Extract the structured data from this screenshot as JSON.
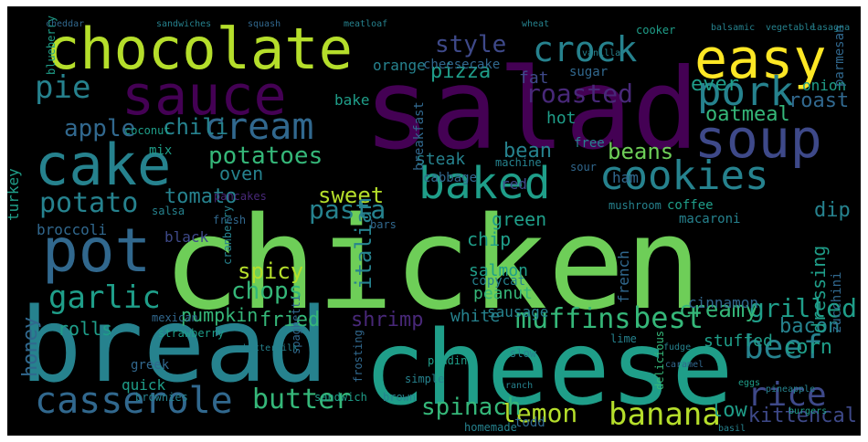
{
  "palette": {
    "background": "#000000",
    "viridis": [
      "#440154",
      "#482878",
      "#3e4989",
      "#31688e",
      "#26828e",
      "#1f9e89",
      "#35b779",
      "#6ece58",
      "#b5de2b",
      "#fde725"
    ]
  },
  "words": [
    {
      "text": "chicken",
      "weight": 1.0
    },
    {
      "text": "salad",
      "weight": 0.93
    },
    {
      "text": "bread",
      "weight": 0.9
    },
    {
      "text": "cheese",
      "weight": 0.88
    },
    {
      "text": "chocolate",
      "weight": 0.6
    },
    {
      "text": "sauce",
      "weight": 0.57
    },
    {
      "text": "cake",
      "weight": 0.56
    },
    {
      "text": "pot",
      "weight": 0.55
    },
    {
      "text": "easy",
      "weight": 0.52
    },
    {
      "text": "soup",
      "weight": 0.5
    },
    {
      "text": "crock",
      "weight": 0.42
    },
    {
      "text": "pork",
      "weight": 0.41
    },
    {
      "text": "cream",
      "weight": 0.4
    },
    {
      "text": "baked",
      "weight": 0.39
    },
    {
      "text": "cookies",
      "weight": 0.38
    },
    {
      "text": "casserole",
      "weight": 0.33
    },
    {
      "text": "beef",
      "weight": 0.33
    },
    {
      "text": "rice",
      "weight": 0.33
    },
    {
      "text": "potato",
      "weight": 0.3
    },
    {
      "text": "garlic",
      "weight": 0.3
    },
    {
      "text": "pie",
      "weight": 0.3
    },
    {
      "text": "butter",
      "weight": 0.27
    },
    {
      "text": "banana",
      "weight": 0.27
    },
    {
      "text": "best",
      "weight": 0.27
    },
    {
      "text": "muffins",
      "weight": 0.25
    },
    {
      "text": "roasted",
      "weight": 0.23
    },
    {
      "text": "potatoes",
      "weight": 0.22
    },
    {
      "text": "pasta",
      "weight": 0.21
    },
    {
      "text": "apple",
      "weight": 0.21
    },
    {
      "text": "style",
      "weight": 0.21
    },
    {
      "text": "sweet",
      "weight": 0.19
    },
    {
      "text": "lemon",
      "weight": 0.2
    },
    {
      "text": "chili",
      "weight": 0.19
    },
    {
      "text": "grilled",
      "weight": 0.19
    },
    {
      "text": "creamy",
      "weight": 0.19
    },
    {
      "text": "spinach",
      "weight": 0.18
    },
    {
      "text": "italian",
      "weight": 0.18
    },
    {
      "text": "chops",
      "weight": 0.17
    },
    {
      "text": "spicy",
      "weight": 0.17
    },
    {
      "text": "roast",
      "weight": 0.16
    },
    {
      "text": "bean",
      "weight": 0.16
    },
    {
      "text": "beans",
      "weight": 0.16
    },
    {
      "text": "pizza",
      "weight": 0.16
    },
    {
      "text": "oatmeal",
      "weight": 0.15
    },
    {
      "text": "fried",
      "weight": 0.16
    },
    {
      "text": "shrimp",
      "weight": 0.16
    },
    {
      "text": "tomato",
      "weight": 0.15
    },
    {
      "text": "honey",
      "weight": 0.14
    },
    {
      "text": "bacon",
      "weight": 0.15
    },
    {
      "text": "low",
      "weight": 0.16
    },
    {
      "text": "kittencal",
      "weight": 0.15
    },
    {
      "text": "dip",
      "weight": 0.15
    },
    {
      "text": "corn",
      "weight": 0.14
    },
    {
      "text": "ever",
      "weight": 0.14
    },
    {
      "text": "dressing",
      "weight": 0.13
    },
    {
      "text": "pumpkin",
      "weight": 0.13
    },
    {
      "text": "rolls",
      "weight": 0.13
    },
    {
      "text": "peanut",
      "weight": 0.13
    },
    {
      "text": "green",
      "weight": 0.13
    },
    {
      "text": "white",
      "weight": 0.12
    },
    {
      "text": "fat",
      "weight": 0.12
    },
    {
      "text": "oven",
      "weight": 0.13
    },
    {
      "text": "salmon",
      "weight": 0.12
    },
    {
      "text": "stuffed",
      "weight": 0.12
    },
    {
      "text": "sausage",
      "weight": 0.11
    },
    {
      "text": "cinnamon",
      "weight": 0.11
    },
    {
      "text": "steak",
      "weight": 0.12
    },
    {
      "text": "onion",
      "weight": 0.11
    },
    {
      "text": "hot",
      "weight": 0.11
    },
    {
      "text": "chip",
      "weight": 0.11
    },
    {
      "text": "french",
      "weight": 0.11
    },
    {
      "text": "orange",
      "weight": 0.11
    },
    {
      "text": "broccoli",
      "weight": 0.11
    },
    {
      "text": "quick",
      "weight": 0.1
    },
    {
      "text": "turkey",
      "weight": 0.1
    },
    {
      "text": "black",
      "weight": 0.1
    },
    {
      "text": "red",
      "weight": 0.1
    },
    {
      "text": "ham",
      "weight": 0.1
    },
    {
      "text": "bake",
      "weight": 0.09
    },
    {
      "text": "parmesan",
      "weight": 0.09
    },
    {
      "text": "cheesecake",
      "weight": 0.09
    },
    {
      "text": "breakfast",
      "weight": 0.09
    },
    {
      "text": "copycat",
      "weight": 0.09
    },
    {
      "text": "todd",
      "weight": 0.09
    },
    {
      "text": "mix",
      "weight": 0.09
    },
    {
      "text": "sugar",
      "weight": 0.08
    },
    {
      "text": "free",
      "weight": 0.08
    },
    {
      "text": "cabbage",
      "weight": 0.08
    },
    {
      "text": "zucchini",
      "weight": 0.08
    },
    {
      "text": "coffee",
      "weight": 0.08
    },
    {
      "text": "macaroni",
      "weight": 0.08
    },
    {
      "text": "greek",
      "weight": 0.08
    },
    {
      "text": "pancakes",
      "weight": 0.07
    },
    {
      "text": "bars",
      "weight": 0.07
    },
    {
      "text": "mushroom",
      "weight": 0.07
    },
    {
      "text": "brownies",
      "weight": 0.07
    },
    {
      "text": "frosting",
      "weight": 0.07
    },
    {
      "text": "machine",
      "weight": 0.07
    },
    {
      "text": "coconut",
      "weight": 0.07
    },
    {
      "text": "spaghetti",
      "weight": 0.07
    },
    {
      "text": "homemade",
      "weight": 0.07
    },
    {
      "text": "salsa",
      "weight": 0.07
    },
    {
      "text": "mexican",
      "weight": 0.07
    },
    {
      "text": "strawberry",
      "weight": 0.07
    },
    {
      "text": "pudding",
      "weight": 0.07
    },
    {
      "text": "simple",
      "weight": 0.07
    },
    {
      "text": "cranberry",
      "weight": 0.07
    },
    {
      "text": "delicious",
      "weight": 0.07
    },
    {
      "text": "sandwich",
      "weight": 0.06
    },
    {
      "text": "brown",
      "weight": 0.06
    },
    {
      "text": "blueberry",
      "weight": 0.06
    },
    {
      "text": "burgers",
      "weight": 0.06
    },
    {
      "text": "cooker",
      "weight": 0.06
    },
    {
      "text": "vanilla",
      "weight": 0.06
    },
    {
      "text": "fresh",
      "weight": 0.06
    },
    {
      "text": "slow",
      "weight": 0.06
    },
    {
      "text": "sour",
      "weight": 0.06
    },
    {
      "text": "lime",
      "weight": 0.06
    },
    {
      "text": "wheat",
      "weight": 0.06
    },
    {
      "text": "balsamic",
      "weight": 0.06
    },
    {
      "text": "vegetable",
      "weight": 0.06
    },
    {
      "text": "lasagna",
      "weight": 0.06
    },
    {
      "text": "squash",
      "weight": 0.06
    },
    {
      "text": "meatloaf",
      "weight": 0.06
    },
    {
      "text": "sandwiches",
      "weight": 0.06
    },
    {
      "text": "fudge",
      "weight": 0.06
    },
    {
      "text": "caramel",
      "weight": 0.06
    },
    {
      "text": "pineapple",
      "weight": 0.06
    },
    {
      "text": "eggs",
      "weight": 0.06
    },
    {
      "text": "basil",
      "weight": 0.06
    },
    {
      "text": "ranch",
      "weight": 0.06
    },
    {
      "text": "cheddar",
      "weight": 0.06
    },
    {
      "text": "buttermilk",
      "weight": 0.06
    }
  ]
}
